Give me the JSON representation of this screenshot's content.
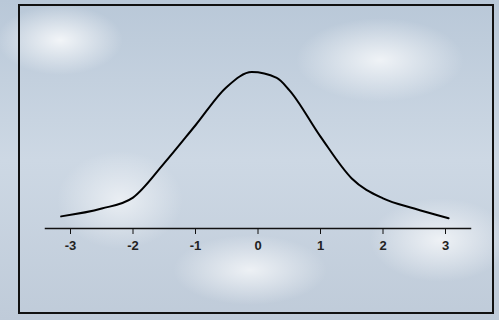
{
  "chart_data": {
    "type": "line",
    "x": [
      -3.15,
      -2.5,
      -2.0,
      -1.5,
      -1.0,
      -0.5,
      -0.1,
      0.3,
      0.5,
      1.0,
      1.5,
      2.0,
      2.5,
      3.05
    ],
    "values": [
      0.031,
      0.051,
      0.079,
      0.167,
      0.264,
      0.362,
      0.4,
      0.385,
      0.354,
      0.235,
      0.128,
      0.077,
      0.051,
      0.026
    ],
    "color": "#000000",
    "xlim": [
      -3.4,
      3.4
    ],
    "xticks": [
      -3,
      -2,
      -1,
      0,
      1,
      2,
      3
    ],
    "ylim": [
      0,
      0.45
    ],
    "tick_labels": "x",
    "grid": false
  }
}
